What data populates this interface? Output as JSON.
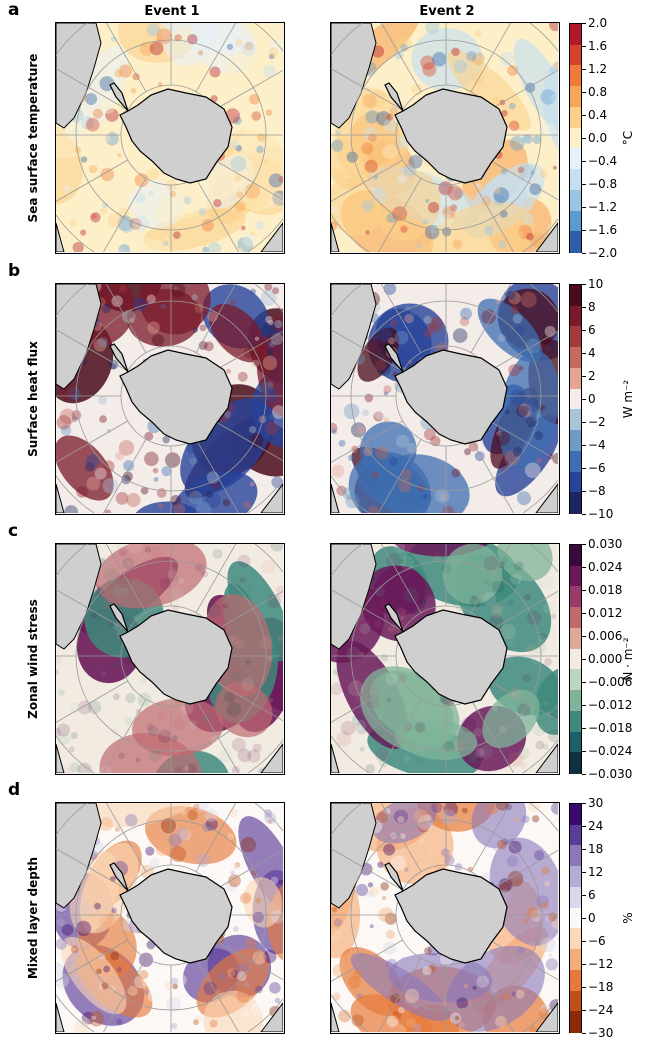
{
  "columns": [
    "Event 1",
    "Event 2"
  ],
  "rows": [
    {
      "letter": "a",
      "label": "Sea surface temperature",
      "unit": "°C",
      "ticks": [
        "2.0",
        "1.6",
        "1.2",
        "0.8",
        "0.4",
        "0.0",
        "−0.4",
        "−0.8",
        "−1.2",
        "−1.6",
        "−2.0"
      ],
      "colors": [
        "#b2182b",
        "#d6432b",
        "#ef7a3a",
        "#f6a55a",
        "#fbd08a",
        "#fdf0c8",
        "#e8f1f8",
        "#c6dff0",
        "#98c5e4",
        "#5b9bd0",
        "#2e5ea8"
      ]
    },
    {
      "letter": "b",
      "label": "Surface heat flux",
      "unit": "W m⁻²",
      "ticks": [
        "10",
        "8",
        "6",
        "4",
        "2",
        "0",
        "−2",
        "−4",
        "−6",
        "−8",
        "−10"
      ],
      "colors": [
        "#4a0c1b",
        "#7a1a2a",
        "#a33a3d",
        "#c66a5e",
        "#e4a593",
        "#f3ece8",
        "#a9c4d6",
        "#6f9cc5",
        "#3d6db2",
        "#27449a",
        "#1b2560"
      ]
    },
    {
      "letter": "c",
      "label": "Zonal wind stress",
      "unit": "N · m⁻²",
      "ticks": [
        "0.030",
        "0.024",
        "0.018",
        "0.012",
        "0.006",
        "0.000",
        "−0.006",
        "−0.012",
        "−0.018",
        "−0.024",
        "−0.030"
      ],
      "colors": [
        "#3a0a3e",
        "#6a1a5a",
        "#9a3a6a",
        "#c06a70",
        "#deaa98",
        "#f2ebe2",
        "#bcd6c0",
        "#80b49a",
        "#3e8a7c",
        "#1e5e66",
        "#10303f"
      ]
    },
    {
      "letter": "d",
      "label": "Mixed layer depth",
      "unit": "%",
      "ticks": [
        "30",
        "24",
        "18",
        "12",
        "6",
        "0",
        "−6",
        "−12",
        "−18",
        "−24",
        "−30"
      ],
      "colors": [
        "#3b0a6e",
        "#5c3c99",
        "#8a78bb",
        "#b5abd4",
        "#dcd7ea",
        "#fbf8f5",
        "#fcd9b8",
        "#f6ac78",
        "#e77a3a",
        "#c0501a",
        "#8a2a08"
      ]
    }
  ]
}
